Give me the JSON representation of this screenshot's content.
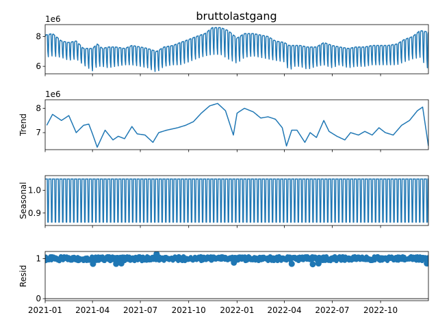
{
  "figure": {
    "title": "bruttolastgang"
  },
  "colors": {
    "series": "#1f77b4",
    "axis": "#000000"
  },
  "chart_data": [
    {
      "type": "line",
      "panel": "observed",
      "ylabel": "",
      "offset_label": "1e6",
      "ylim": [
        5.5,
        8.8
      ],
      "yticks": [
        6,
        8
      ],
      "ytick_labels": [
        "6",
        "8"
      ],
      "xlim": [
        "2021-01-01",
        "2022-12-31"
      ],
      "weekly_cycle": true,
      "series": [
        {
          "x": [
            "2021-01-01",
            "2021-01-15",
            "2021-02-01",
            "2021-02-15",
            "2021-03-01",
            "2021-03-15",
            "2021-04-01",
            "2021-04-10",
            "2021-04-20",
            "2021-05-01",
            "2021-05-15",
            "2021-06-01",
            "2021-06-15",
            "2021-07-01",
            "2021-07-15",
            "2021-08-01",
            "2021-08-15",
            "2021-09-01",
            "2021-09-15",
            "2021-10-01",
            "2021-10-15",
            "2021-11-01",
            "2021-11-15",
            "2021-12-01",
            "2021-12-15",
            "2022-01-01",
            "2022-01-15",
            "2022-02-01",
            "2022-02-15",
            "2022-03-01",
            "2022-03-15",
            "2022-04-01",
            "2022-04-10",
            "2022-04-20",
            "2022-05-01",
            "2022-05-15",
            "2022-06-01",
            "2022-06-15",
            "2022-07-01",
            "2022-07-15",
            "2022-08-01",
            "2022-08-15",
            "2022-09-01",
            "2022-09-15",
            "2022-10-01",
            "2022-10-15",
            "2022-11-01",
            "2022-11-15",
            "2022-12-01",
            "2022-12-15",
            "2022-12-31"
          ],
          "high": [
            8.1,
            8.2,
            7.7,
            7.6,
            7.7,
            7.2,
            7.2,
            7.5,
            7.2,
            7.3,
            7.3,
            7.2,
            7.4,
            7.3,
            7.2,
            7.0,
            7.3,
            7.4,
            7.6,
            7.8,
            8.0,
            8.2,
            8.6,
            8.6,
            8.4,
            7.9,
            8.2,
            8.2,
            8.1,
            8.0,
            7.7,
            7.6,
            7.4,
            7.4,
            7.4,
            7.3,
            7.3,
            7.6,
            7.4,
            7.3,
            7.2,
            7.3,
            7.3,
            7.4,
            7.4,
            7.4,
            7.5,
            7.8,
            8.0,
            8.4,
            8.3
          ],
          "low": [
            6.6,
            6.7,
            6.6,
            6.4,
            6.5,
            6.1,
            5.7,
            6.0,
            6.0,
            5.9,
            6.0,
            6.1,
            6.1,
            6.0,
            5.9,
            5.6,
            6.0,
            6.1,
            6.1,
            6.3,
            6.5,
            6.7,
            6.8,
            6.8,
            6.5,
            6.2,
            6.6,
            6.7,
            6.6,
            6.5,
            6.4,
            6.3,
            5.7,
            6.0,
            6.0,
            5.8,
            6.0,
            6.1,
            5.9,
            6.1,
            5.9,
            6.0,
            6.0,
            6.1,
            6.1,
            6.1,
            6.1,
            6.3,
            6.5,
            6.6,
            5.8
          ]
        }
      ]
    },
    {
      "type": "line",
      "panel": "trend",
      "ylabel": "Trend",
      "offset_label": "1e6",
      "ylim": [
        6.3,
        8.35
      ],
      "yticks": [
        7,
        8
      ],
      "ytick_labels": [
        "7",
        "8"
      ],
      "xlim": [
        "2021-01-01",
        "2022-12-31"
      ],
      "series": [
        {
          "x": [
            "2021-01-04",
            "2021-01-15",
            "2021-02-01",
            "2021-02-15",
            "2021-03-01",
            "2021-03-15",
            "2021-03-25",
            "2021-04-01",
            "2021-04-10",
            "2021-04-25",
            "2021-05-10",
            "2021-05-20",
            "2021-06-01",
            "2021-06-15",
            "2021-06-25",
            "2021-07-10",
            "2021-07-25",
            "2021-08-05",
            "2021-08-20",
            "2021-09-10",
            "2021-09-25",
            "2021-10-10",
            "2021-10-25",
            "2021-11-10",
            "2021-11-25",
            "2021-12-10",
            "2021-12-25",
            "2022-01-01",
            "2022-01-15",
            "2022-02-01",
            "2022-02-15",
            "2022-03-01",
            "2022-03-15",
            "2022-03-28",
            "2022-04-05",
            "2022-04-15",
            "2022-04-25",
            "2022-05-10",
            "2022-05-20",
            "2022-06-01",
            "2022-06-15",
            "2022-06-25",
            "2022-07-10",
            "2022-07-25",
            "2022-08-05",
            "2022-08-20",
            "2022-09-01",
            "2022-09-15",
            "2022-09-28",
            "2022-10-10",
            "2022-10-25",
            "2022-11-10",
            "2022-11-25",
            "2022-12-10",
            "2022-12-20",
            "2022-12-31"
          ],
          "values": [
            7.3,
            7.75,
            7.5,
            7.7,
            7.0,
            7.3,
            7.35,
            6.95,
            6.4,
            7.1,
            6.7,
            6.85,
            6.75,
            7.25,
            6.95,
            6.9,
            6.6,
            7.0,
            7.1,
            7.2,
            7.3,
            7.45,
            7.8,
            8.1,
            8.2,
            7.9,
            6.9,
            7.8,
            8.0,
            7.85,
            7.6,
            7.65,
            7.55,
            7.2,
            6.45,
            7.1,
            7.1,
            6.6,
            7.0,
            6.8,
            7.5,
            7.05,
            6.85,
            6.7,
            7.0,
            6.9,
            7.05,
            6.9,
            7.2,
            7.0,
            6.9,
            7.3,
            7.5,
            7.9,
            8.05,
            6.45
          ]
        }
      ]
    },
    {
      "type": "line",
      "panel": "seasonal",
      "ylabel": "Seasonal",
      "ylim": [
        0.845,
        1.065
      ],
      "yticks": [
        0.9,
        1.0
      ],
      "ytick_labels": [
        "0.9",
        "1.0"
      ],
      "xlim": [
        "2021-01-01",
        "2022-12-31"
      ],
      "period_days": 7,
      "series": [
        {
          "high": 1.05,
          "low": 0.86
        }
      ]
    },
    {
      "type": "scatter",
      "panel": "resid",
      "ylabel": "Resid",
      "ylim": [
        -0.05,
        1.18
      ],
      "yticks": [
        0,
        1
      ],
      "ytick_labels": [
        "0",
        "1"
      ],
      "xlim": [
        "2021-01-01",
        "2022-12-31"
      ],
      "baseline": 0,
      "series": [
        {
          "band": [
            0.94,
            1.06
          ],
          "outliers": [
            {
              "x": "2021-04-02",
              "y": 0.87
            },
            {
              "x": "2021-05-16",
              "y": 0.87
            },
            {
              "x": "2021-05-26",
              "y": 0.88
            },
            {
              "x": "2021-08-01",
              "y": 1.12
            },
            {
              "x": "2021-12-26",
              "y": 0.9
            },
            {
              "x": "2022-04-15",
              "y": 0.87
            },
            {
              "x": "2022-05-25",
              "y": 0.86
            },
            {
              "x": "2022-06-05",
              "y": 0.88
            },
            {
              "x": "2022-12-28",
              "y": 0.88
            }
          ]
        }
      ],
      "xticks": [
        "2021-01-01",
        "2021-04-01",
        "2021-07-01",
        "2021-10-01",
        "2022-01-01",
        "2022-04-01",
        "2022-07-01",
        "2022-10-01"
      ],
      "xtick_labels": [
        "2021-01",
        "2021-04",
        "2021-07",
        "2021-10",
        "2022-01",
        "2022-04",
        "2022-07",
        "2022-10"
      ]
    }
  ]
}
